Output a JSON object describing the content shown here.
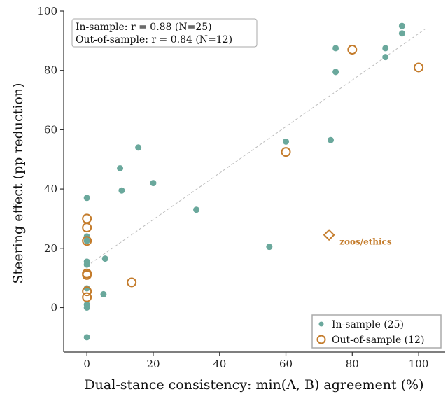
{
  "chart_data": {
    "type": "scatter",
    "xlabel": "Dual-stance consistency: min(A, B) agreement (%)",
    "ylabel": "Steering effect (pp reduction)",
    "xlim": [
      -7,
      108
    ],
    "ylim": [
      -15,
      100
    ],
    "xticks": [
      0,
      20,
      40,
      60,
      80,
      100
    ],
    "yticks": [
      0,
      20,
      40,
      60,
      80,
      100
    ],
    "stats": {
      "line1": "In-sample: r = 0.88 (N=25)",
      "line2": "Out-of-sample: r = 0.84 (N=12)"
    },
    "legend": {
      "placement": "bottom-right",
      "in_sample": "In-sample (25)",
      "out_sample": "Out-of-sample (12)"
    },
    "colors": {
      "in_sample": "#6aa89c",
      "out_sample": "#c47c2c",
      "trend": "#bdbdbd",
      "axis": "#333333"
    },
    "trend": {
      "x": [
        0,
        102
      ],
      "y": [
        14,
        94
      ]
    },
    "series": [
      {
        "name": "In-sample (25)",
        "marker": "dot",
        "points": [
          [
            0,
            -10
          ],
          [
            0,
            0
          ],
          [
            0,
            1
          ],
          [
            0,
            6.5
          ],
          [
            0,
            14.5
          ],
          [
            0,
            15.5
          ],
          [
            0,
            22.5
          ],
          [
            0,
            24
          ],
          [
            0,
            37
          ],
          [
            5,
            4.5
          ],
          [
            5.5,
            16.5
          ],
          [
            10,
            47
          ],
          [
            10.5,
            39.5
          ],
          [
            15.5,
            54
          ],
          [
            20,
            42
          ],
          [
            33,
            33
          ],
          [
            55,
            20.5
          ],
          [
            60,
            56
          ],
          [
            73.5,
            56.5
          ],
          [
            75,
            79.5
          ],
          [
            75,
            87.5
          ],
          [
            90,
            84.5
          ],
          [
            90,
            87.5
          ],
          [
            95,
            92.5
          ],
          [
            95,
            95
          ]
        ]
      },
      {
        "name": "Out-of-sample (12)",
        "marker": "circle",
        "points": [
          [
            0,
            3.5
          ],
          [
            0,
            5.5
          ],
          [
            0,
            11
          ],
          [
            0,
            11.5
          ],
          [
            0,
            22.5
          ],
          [
            0,
            27
          ],
          [
            0,
            30
          ],
          [
            13.5,
            8.5
          ],
          [
            60,
            52.5
          ],
          [
            80,
            87
          ],
          [
            100,
            81
          ]
        ]
      }
    ],
    "annotation": {
      "label": "zoos/ethics",
      "x": 73,
      "y": 24.5,
      "marker": "diamond"
    }
  }
}
